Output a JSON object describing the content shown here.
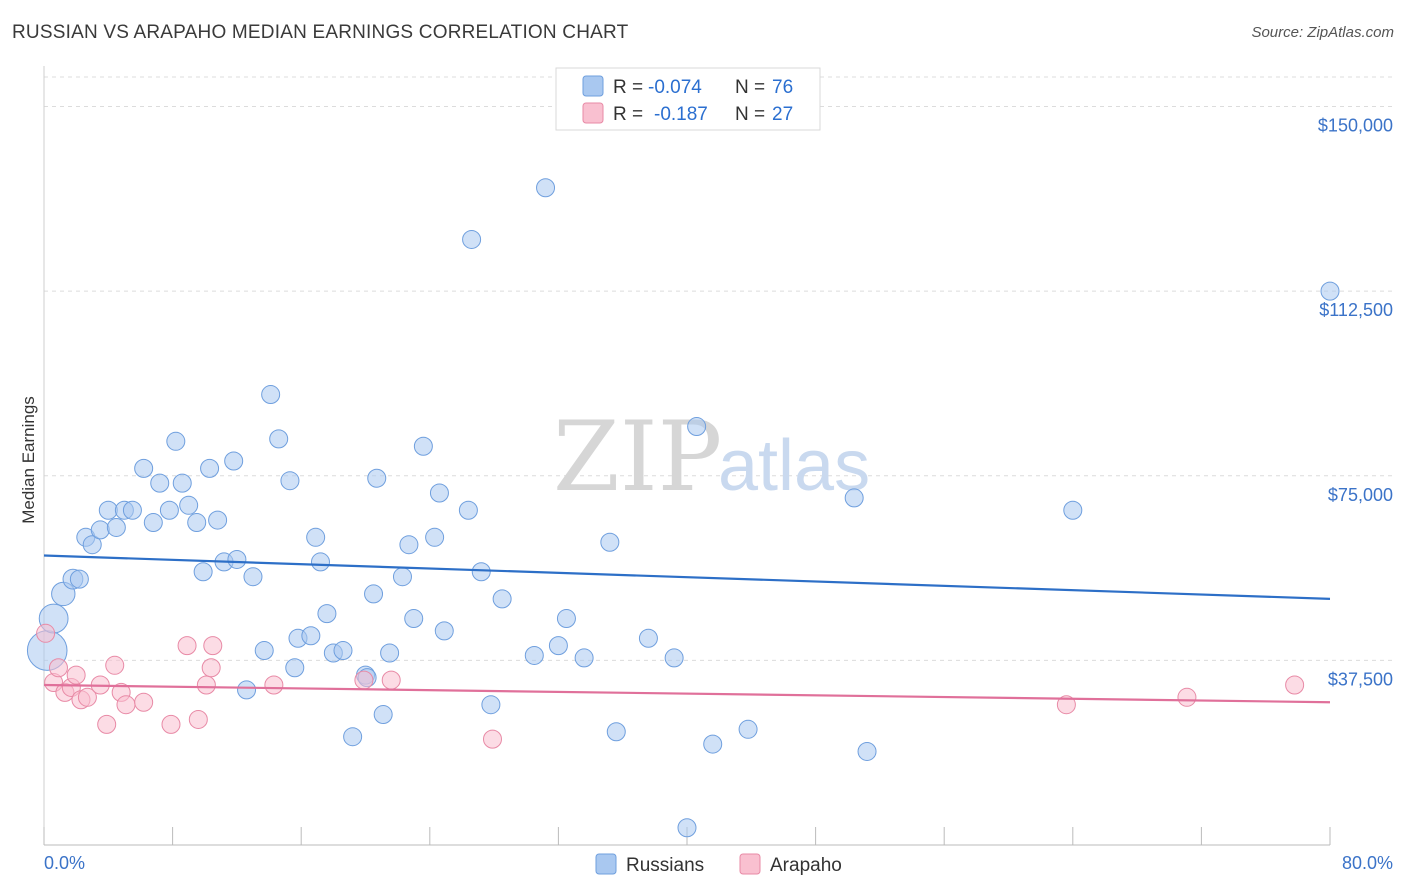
{
  "header": {
    "title": "RUSSIAN VS ARAPAHO MEDIAN EARNINGS CORRELATION CHART",
    "source": "Source: ZipAtlas.com"
  },
  "watermark": {
    "zip": "ZIP",
    "atlas": "atlas"
  },
  "legend": {
    "rows": [
      {
        "r_label": "R =",
        "r_value": "-0.074",
        "n_label": "N =",
        "n_value": "76",
        "color": "#a9c8f0",
        "stroke": "#6f9fde"
      },
      {
        "r_label": "R =",
        "r_value": "-0.187",
        "n_label": "N =",
        "n_value": "27",
        "color": "#f9c0d0",
        "stroke": "#e88aa6"
      }
    ]
  },
  "bottom_legend": [
    {
      "label": "Russians",
      "color": "#a9c8f0",
      "stroke": "#6f9fde"
    },
    {
      "label": "Arapaho",
      "color": "#f9c0d0",
      "stroke": "#e88aa6"
    }
  ],
  "chart_data": {
    "type": "scatter",
    "title": "RUSSIAN VS ARAPAHO MEDIAN EARNINGS CORRELATION CHART",
    "xlabel": "",
    "ylabel": "Median Earnings",
    "xlim": [
      0,
      80
    ],
    "ylim": [
      0,
      156000
    ],
    "x_tick_labels": [
      "0.0%",
      "80.0%"
    ],
    "y_ticks": [
      37500,
      75000,
      112500,
      150000
    ],
    "y_tick_labels": [
      "$37,500",
      "$75,000",
      "$112,500",
      "$150,000"
    ],
    "grid": true,
    "series": [
      {
        "name": "Russians",
        "color": "#a9c8f0",
        "stroke": "#6f9fde",
        "line_color": "#2d6fc7",
        "trend": [
          [
            0,
            58800
          ],
          [
            80,
            50000
          ]
        ],
        "points": [
          [
            0.2,
            39500,
            2.2
          ],
          [
            0.6,
            46000,
            1.6
          ],
          [
            1.2,
            51000,
            1.3
          ],
          [
            1.8,
            54000,
            1.1
          ],
          [
            2.2,
            54000,
            1.0
          ],
          [
            2.6,
            62500,
            1.0
          ],
          [
            3.0,
            61000,
            1.0
          ],
          [
            3.5,
            64000,
            1.0
          ],
          [
            4.0,
            68000,
            1.0
          ],
          [
            4.5,
            64500,
            1.0
          ],
          [
            5.0,
            68000,
            1.0
          ],
          [
            5.5,
            68000,
            1.0
          ],
          [
            6.2,
            76500,
            1.0
          ],
          [
            6.8,
            65500,
            1.0
          ],
          [
            7.2,
            73500,
            1.0
          ],
          [
            7.8,
            68000,
            1.0
          ],
          [
            8.2,
            82000,
            1.0
          ],
          [
            8.6,
            73500,
            1.0
          ],
          [
            9.0,
            69000,
            1.0
          ],
          [
            9.5,
            65500,
            1.0
          ],
          [
            9.9,
            55500,
            1.0
          ],
          [
            10.3,
            76500,
            1.0
          ],
          [
            10.8,
            66000,
            1.0
          ],
          [
            11.2,
            57500,
            1.0
          ],
          [
            11.8,
            78000,
            1.0
          ],
          [
            12.0,
            58000,
            1.0
          ],
          [
            12.6,
            31500,
            1.0
          ],
          [
            13.0,
            54500,
            1.0
          ],
          [
            13.7,
            39500,
            1.0
          ],
          [
            14.1,
            91500,
            1.0
          ],
          [
            14.6,
            82500,
            1.0
          ],
          [
            15.3,
            74000,
            1.0
          ],
          [
            15.6,
            36000,
            1.0
          ],
          [
            15.8,
            42000,
            1.0
          ],
          [
            16.6,
            42500,
            1.0
          ],
          [
            16.9,
            62500,
            1.0
          ],
          [
            17.2,
            57500,
            1.0
          ],
          [
            17.6,
            47000,
            1.0
          ],
          [
            18.0,
            39000,
            1.0
          ],
          [
            18.6,
            39500,
            1.0
          ],
          [
            19.2,
            22000,
            1.0
          ],
          [
            20.0,
            34500,
            1.0
          ],
          [
            20.5,
            51000,
            1.0
          ],
          [
            20.7,
            74500,
            1.0
          ],
          [
            21.1,
            26500,
            1.0
          ],
          [
            21.5,
            39000,
            1.0
          ],
          [
            22.3,
            54500,
            1.0
          ],
          [
            22.7,
            61000,
            1.0
          ],
          [
            23.0,
            46000,
            1.0
          ],
          [
            23.6,
            81000,
            1.0
          ],
          [
            24.3,
            62500,
            1.0
          ],
          [
            24.6,
            71500,
            1.0
          ],
          [
            24.9,
            43500,
            1.0
          ],
          [
            26.4,
            68000,
            1.0
          ],
          [
            26.6,
            123000,
            1.0
          ],
          [
            27.2,
            55500,
            1.0
          ],
          [
            27.8,
            28500,
            1.0
          ],
          [
            28.5,
            50000,
            1.0
          ],
          [
            30.5,
            38500,
            1.0
          ],
          [
            31.2,
            133500,
            1.0
          ],
          [
            32.0,
            40500,
            1.0
          ],
          [
            32.5,
            46000,
            1.0
          ],
          [
            33.6,
            38000,
            1.0
          ],
          [
            35.2,
            61500,
            1.0
          ],
          [
            35.6,
            23000,
            1.0
          ],
          [
            37.6,
            42000,
            1.0
          ],
          [
            39.2,
            38000,
            1.0
          ],
          [
            40.0,
            3500,
            1.0
          ],
          [
            40.6,
            85000,
            1.0
          ],
          [
            41.6,
            20500,
            1.0
          ],
          [
            43.8,
            23500,
            1.0
          ],
          [
            50.4,
            70500,
            1.0
          ],
          [
            51.2,
            19000,
            1.0
          ],
          [
            64.0,
            68000,
            1.0
          ],
          [
            80.0,
            112500,
            1.0
          ],
          [
            20.1,
            34000,
            1.0
          ]
        ]
      },
      {
        "name": "Arapaho",
        "color": "#f9c0d0",
        "stroke": "#e88aa6",
        "line_color": "#e0709a",
        "trend": [
          [
            0,
            32500
          ],
          [
            80,
            29000
          ]
        ],
        "points": [
          [
            0.1,
            43000,
            1.0
          ],
          [
            0.6,
            33000,
            1.0
          ],
          [
            0.9,
            36000,
            1.0
          ],
          [
            1.3,
            31000,
            1.0
          ],
          [
            1.7,
            32000,
            1.0
          ],
          [
            2.0,
            34500,
            1.0
          ],
          [
            2.3,
            29500,
            1.0
          ],
          [
            2.7,
            30000,
            1.0
          ],
          [
            3.5,
            32500,
            1.0
          ],
          [
            3.9,
            24500,
            1.0
          ],
          [
            4.4,
            36500,
            1.0
          ],
          [
            4.8,
            31000,
            1.0
          ],
          [
            5.1,
            28500,
            1.0
          ],
          [
            6.2,
            29000,
            1.0
          ],
          [
            7.9,
            24500,
            1.0
          ],
          [
            8.9,
            40500,
            1.0
          ],
          [
            9.6,
            25500,
            1.0
          ],
          [
            10.1,
            32500,
            1.0
          ],
          [
            10.4,
            36000,
            1.0
          ],
          [
            10.5,
            40500,
            1.0
          ],
          [
            14.3,
            32500,
            1.0
          ],
          [
            19.9,
            33500,
            1.0
          ],
          [
            21.6,
            33500,
            1.0
          ],
          [
            27.9,
            21500,
            1.0
          ],
          [
            63.6,
            28500,
            1.0
          ],
          [
            71.1,
            30000,
            1.0
          ],
          [
            77.8,
            32500,
            1.0
          ]
        ]
      }
    ]
  }
}
